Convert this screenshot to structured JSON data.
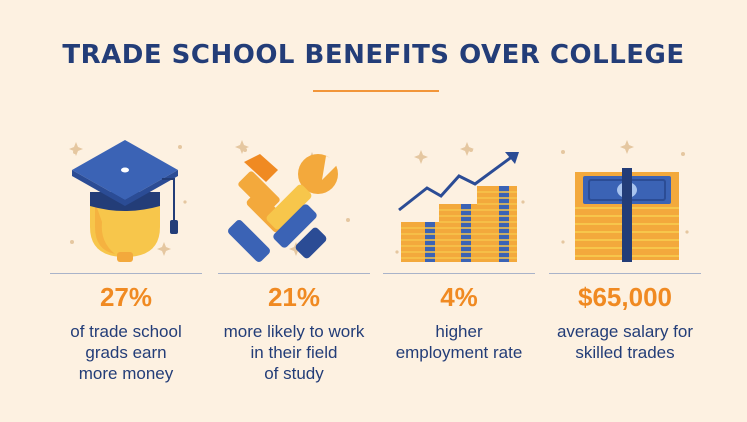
{
  "title": "TRADE SCHOOL BENEFITS OVER COLLEGE",
  "colors": {
    "background": "#fdf1e1",
    "navy": "#233d78",
    "blue": "#3b63b5",
    "orange": "#f08a22",
    "yellow": "#f7c64b"
  },
  "stats": [
    {
      "icon": "graduation-cap-icon",
      "value": "27%",
      "desc_lines": [
        "of trade school",
        "grads earn",
        "more money"
      ]
    },
    {
      "icon": "hammer-wrench-icon",
      "value": "21%",
      "desc_lines": [
        "more likely to work",
        "in their field",
        "of study"
      ]
    },
    {
      "icon": "growth-chart-icon",
      "value": "4%",
      "desc_lines": [
        "higher",
        "employment rate"
      ]
    },
    {
      "icon": "money-stack-icon",
      "value": "$65,000",
      "desc_lines": [
        "average salary for",
        "skilled trades"
      ]
    }
  ]
}
